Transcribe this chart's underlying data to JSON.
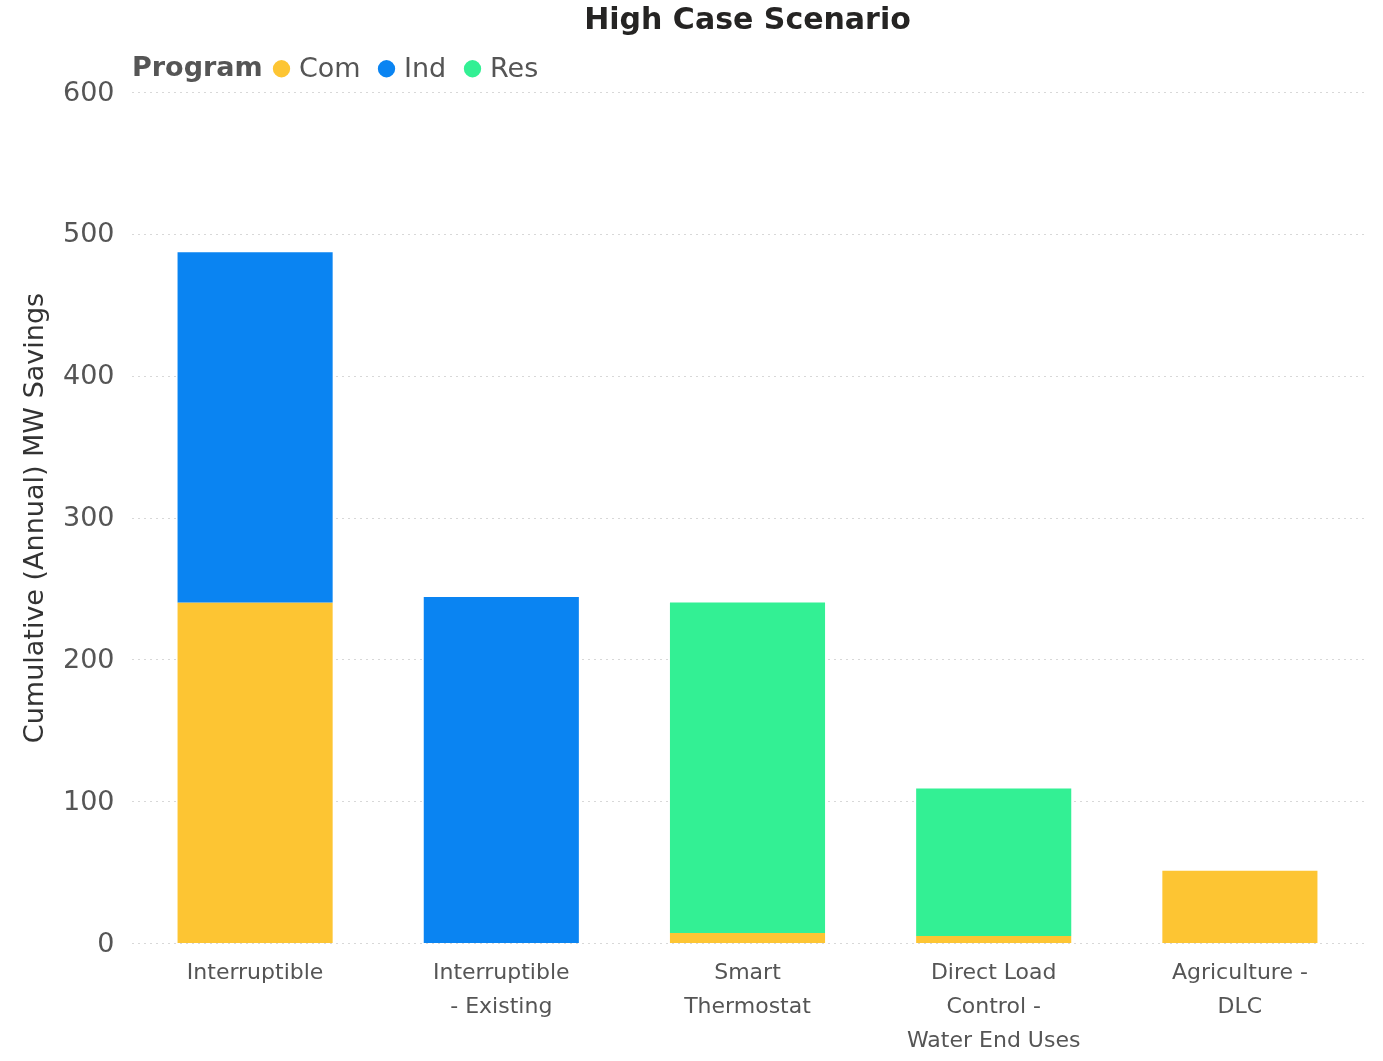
{
  "chart_data": {
    "type": "bar",
    "title": "High Case Scenario",
    "ylabel": "Cumulative (Annual) MW Savings",
    "legend_title": "Program",
    "categories": [
      "Interruptible",
      "Interruptible - Existing",
      "Smart Thermostat",
      "Direct Load Control - Water End Uses",
      "Agriculture - DLC"
    ],
    "series": [
      {
        "name": "Com",
        "color": "#fdc533",
        "values": [
          240,
          null,
          7,
          5,
          51
        ]
      },
      {
        "name": "Ind",
        "color": "#0a84f2",
        "values": [
          247,
          244,
          null,
          null,
          null
        ]
      },
      {
        "name": "Res",
        "color": "#33f094",
        "values": [
          null,
          null,
          233,
          104,
          null
        ]
      }
    ],
    "stacked": true,
    "ylim": [
      0,
      600
    ],
    "yticks": [
      0,
      100,
      200,
      300,
      400,
      500,
      600
    ],
    "grid": "y",
    "legend": "top left"
  }
}
